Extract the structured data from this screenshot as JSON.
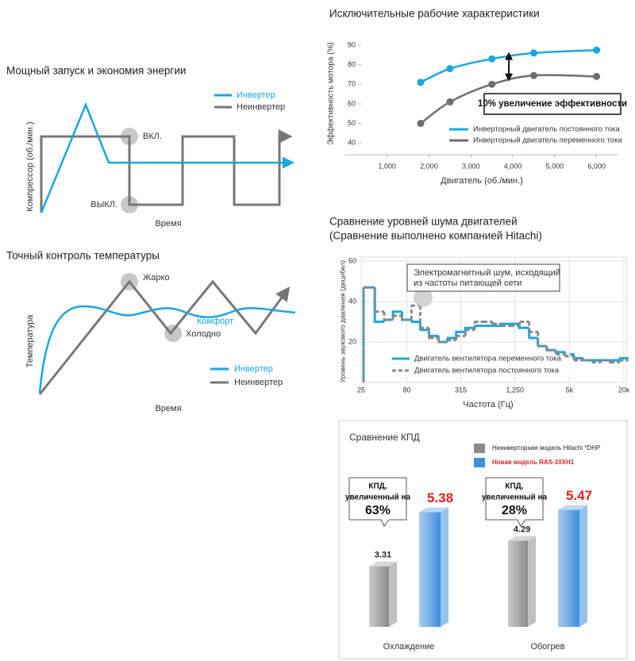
{
  "diagrams": [
    {
      "title": "Мощный запуск и экономия энергии",
      "y_label": "Компрессор (об./мин.)",
      "x_label": "Время",
      "legend": [
        "Инвертер",
        "Неинвертер"
      ],
      "labels": [
        "ВКЛ.",
        "ВЫКЛ."
      ]
    },
    {
      "title": "Точный контроль температуры",
      "y_label": "Температура",
      "x_label": "Время",
      "legend": [
        "Инвертер",
        "Неинвертер"
      ],
      "labels": [
        "Жарко",
        "Холодно",
        "Комфорт"
      ]
    }
  ],
  "chart_data": [
    {
      "type": "line",
      "title": "Исключительные рабочие характеристики",
      "x_label": "Двигатель (об./мин.)",
      "y_label": "Эффективность мотора (%)",
      "x": [
        1800,
        2500,
        3500,
        4500,
        6000
      ],
      "xlim": [
        0,
        6500
      ],
      "xticks": [
        {
          "value": 1000,
          "label": "1,000"
        },
        {
          "value": 2000,
          "label": "2,000"
        },
        {
          "value": 3000,
          "label": "3,000"
        },
        {
          "value": 4000,
          "label": "4,000"
        },
        {
          "value": 5000,
          "label": "5,000"
        },
        {
          "value": 6000,
          "label": "6,000"
        }
      ],
      "ylim": [
        34,
        92
      ],
      "yticks": [
        40,
        50,
        60,
        70,
        80,
        90
      ],
      "series": [
        {
          "name": "Инверторный двигатель постоянного тока",
          "color": "#1aa7e0",
          "values": [
            71,
            78,
            83,
            86,
            87.5
          ]
        },
        {
          "name": "Инверторный двигатель переменного тока",
          "color": "#6e6e6e",
          "values": [
            50,
            61,
            70,
            74.5,
            74
          ]
        }
      ],
      "annotation": "10% увеличение эффективности",
      "legend_position": "lower right"
    },
    {
      "type": "step",
      "title": "Сравнение уровней шума двигателей",
      "subtitle": "(Сравнение выполнено компанией Hitachi)",
      "x_label": "Частота (Гц)",
      "y_label": "Уровень звукового давления (децибел)",
      "xscale": "log",
      "x": [
        25,
        31.5,
        40,
        50,
        63,
        80,
        100,
        125,
        160,
        200,
        250,
        315,
        400,
        500,
        630,
        800,
        1000,
        1250,
        1600,
        2000,
        2500,
        3150,
        4000,
        5000,
        6300,
        8000,
        10000,
        12500,
        16000,
        20000
      ],
      "xlim": [
        25,
        20000
      ],
      "xticks": [
        25,
        80,
        315,
        {
          "value": 1250,
          "label": "1,250"
        },
        {
          "value": 5000,
          "label": "5k"
        },
        {
          "value": 20000,
          "label": "20k"
        }
      ],
      "ylim": [
        0,
        62
      ],
      "yticks": [
        20,
        40,
        60
      ],
      "grid": true,
      "series": [
        {
          "name": "Двигатель вентилятора переменного тока",
          "color": "#1aa7e0",
          "dash": false,
          "values": [
            47,
            47,
            30,
            31,
            35,
            31,
            30,
            26,
            23,
            20,
            22,
            25,
            27,
            28,
            28,
            28,
            29,
            29,
            27,
            22,
            18,
            16,
            15,
            14,
            12,
            11,
            11,
            11,
            11,
            12
          ]
        },
        {
          "name": "Двигатель вентилятора постоянного тока",
          "color": "#8a8a8a",
          "dash": true,
          "values": [
            47,
            47,
            35,
            31,
            33,
            31,
            38,
            27,
            22,
            20,
            21,
            23,
            26,
            30,
            30,
            29,
            28,
            28,
            30,
            25,
            18,
            16,
            14,
            13,
            11,
            11,
            10,
            11,
            10,
            11
          ]
        }
      ],
      "annotation": [
        "Электромагнитный шум, исходящий",
        "из частоты питающей сети"
      ],
      "legend_position": "lower left"
    },
    {
      "type": "bar",
      "title": "Сравнение КПД",
      "categories": [
        "Охлаждение",
        "Обогрев"
      ],
      "ylim": [
        1,
        6.7
      ],
      "series": [
        {
          "name": "Неинверторная модель Hitachi *DHP",
          "color": "#8c8c8c",
          "label_color": "#222222",
          "values": [
            3.31,
            4.29
          ]
        },
        {
          "name": "Новая модель RAS-10XH1",
          "color": "#3f8fdc",
          "label_color": "#e02020",
          "values": [
            5.38,
            5.47
          ]
        }
      ],
      "annotations": [
        [
          "КПД,",
          "увеличенный на",
          "63%"
        ],
        [
          "КПД,",
          "увеличенный на",
          "28%"
        ]
      ]
    }
  ]
}
